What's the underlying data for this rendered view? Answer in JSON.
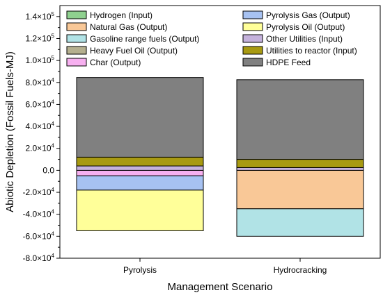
{
  "chart_data": {
    "type": "bar",
    "stacked": true,
    "xlabel": "Management Scenario",
    "ylabel": "Abiotic Depletion (Fossil Fuels-MJ)",
    "ylim": [
      -80000,
      150000
    ],
    "yticks": [
      {
        "value": -80000,
        "mant": "-8.0×10",
        "exp": "4"
      },
      {
        "value": -60000,
        "mant": "-6.0×10",
        "exp": "4"
      },
      {
        "value": -40000,
        "mant": "-4.0×10",
        "exp": "4"
      },
      {
        "value": -20000,
        "mant": "-2.0×10",
        "exp": "4"
      },
      {
        "value": 0,
        "mant": "0.0",
        "exp": ""
      },
      {
        "value": 20000,
        "mant": "2.0×10",
        "exp": "4"
      },
      {
        "value": 40000,
        "mant": "4.0×10",
        "exp": "4"
      },
      {
        "value": 60000,
        "mant": "6.0×10",
        "exp": "4"
      },
      {
        "value": 80000,
        "mant": "8.0×10",
        "exp": "4"
      },
      {
        "value": 100000,
        "mant": "1.0×10",
        "exp": "5"
      },
      {
        "value": 120000,
        "mant": "1.2×10",
        "exp": "5"
      },
      {
        "value": 140000,
        "mant": "1.4×10",
        "exp": "5"
      }
    ],
    "grid": false,
    "legend_placement": "top",
    "categories": [
      "Pyrolysis",
      "Hydrocracking"
    ],
    "series": [
      {
        "name": "Hydrogen (Input)",
        "color": "#8fd18f",
        "values": [
          0,
          0
        ]
      },
      {
        "name": "Natural Gas (Output)",
        "color": "#f9c897",
        "values": [
          0,
          -35000
        ]
      },
      {
        "name": "Gasoline range fuels (Output)",
        "color": "#b1e3e6",
        "values": [
          0,
          -25000
        ]
      },
      {
        "name": "Heavy Fuel Oil (Output)",
        "color": "#b5b08f",
        "values": [
          0,
          0
        ]
      },
      {
        "name": "Char (Output)",
        "color": "#f7b0f0",
        "values": [
          -5000,
          0
        ]
      },
      {
        "name": "Pyrolysis Gas (Output)",
        "color": "#a7c2f2",
        "values": [
          -13000,
          0
        ]
      },
      {
        "name": "Pyrolysis Oil (Output)",
        "color": "#ffff99",
        "values": [
          -37000,
          0
        ]
      },
      {
        "name": "Other Utilities (Input)",
        "color": "#c5b2dc",
        "values": [
          4000,
          2500
        ]
      },
      {
        "name": "Utilities to reactor (Input)",
        "color": "#a89a12",
        "values": [
          8000,
          7500
        ]
      },
      {
        "name": "HDPE Feed",
        "color": "#808080",
        "values": [
          72500,
          72500
        ]
      }
    ],
    "legend_columns": [
      [
        "Hydrogen (Input)",
        "Natural Gas (Output)",
        "Gasoline range fuels (Output)",
        "Heavy Fuel Oil (Output)",
        "Char (Output)"
      ],
      [
        "Pyrolysis Gas (Output)",
        "Pyrolysis Oil (Output)",
        "Other Utilities (Input)",
        "Utilities to reactor (Input)",
        "HDPE Feed"
      ]
    ]
  }
}
